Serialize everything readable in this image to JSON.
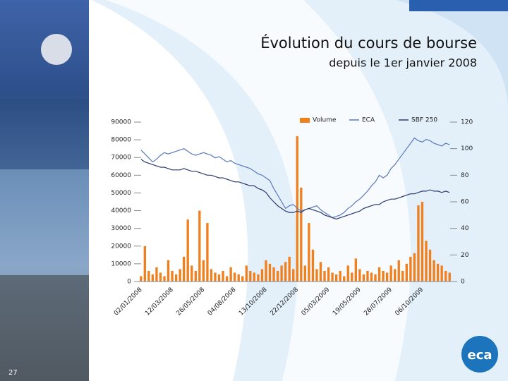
{
  "slide": {
    "title": "Évolution du cours de bourse",
    "subtitle": "depuis le 1er janvier 2008",
    "page_number": "27",
    "logo": "eca"
  },
  "chart_data": {
    "type": "bar-line",
    "categories": [
      "02/01/2008",
      null,
      null,
      null,
      null,
      null,
      null,
      null,
      "12/03/2008",
      null,
      null,
      null,
      null,
      null,
      null,
      null,
      "26/05/2008",
      null,
      null,
      null,
      null,
      null,
      null,
      null,
      "04/08/2008",
      null,
      null,
      null,
      null,
      null,
      null,
      null,
      "13/10/2008",
      null,
      null,
      null,
      null,
      null,
      null,
      null,
      "22/12/2008",
      null,
      null,
      null,
      null,
      null,
      null,
      null,
      "05/03/2009",
      null,
      null,
      null,
      null,
      null,
      null,
      null,
      "19/05/2009",
      null,
      null,
      null,
      null,
      null,
      null,
      null,
      "28/07/2009",
      null,
      null,
      null,
      null,
      null,
      null,
      null,
      "06/10/2009",
      null,
      null,
      null,
      null,
      null,
      null,
      null
    ],
    "series": [
      {
        "name": "Volume",
        "color": "#f07f1e",
        "kind": "bar",
        "axis": "y",
        "values": [
          3000,
          20000,
          6000,
          4000,
          8000,
          5000,
          3000,
          12000,
          6000,
          4000,
          7000,
          14000,
          35000,
          9000,
          6000,
          40000,
          12000,
          33000,
          7000,
          5000,
          4000,
          6000,
          3000,
          8000,
          5000,
          4000,
          3000,
          9000,
          6000,
          5000,
          4000,
          7000,
          12000,
          10000,
          8000,
          6000,
          9000,
          11000,
          14000,
          7000,
          82000,
          53000,
          9000,
          33000,
          18000,
          7000,
          11000,
          6000,
          8000,
          5000,
          4000,
          6000,
          3000,
          9000,
          5000,
          13000,
          7000,
          4000,
          6000,
          5000,
          4000,
          8000,
          6000,
          5000,
          9000,
          7000,
          12000,
          6000,
          10000,
          14000,
          16000,
          43000,
          45000,
          23000,
          18000,
          12000,
          10000,
          9000,
          6000,
          5000
        ]
      },
      {
        "name": "ECA",
        "color": "#5a78c0",
        "kind": "line",
        "axis": "y2",
        "values": [
          99,
          96,
          93,
          90,
          92,
          95,
          97,
          96,
          97,
          98,
          99,
          100,
          98,
          96,
          95,
          96,
          97,
          96,
          95,
          93,
          94,
          92,
          90,
          91,
          89,
          88,
          87,
          86,
          85,
          83,
          81,
          80,
          78,
          76,
          70,
          65,
          60,
          55,
          57,
          58,
          55,
          53,
          54,
          55,
          56,
          57,
          54,
          52,
          50,
          48,
          49,
          50,
          52,
          55,
          57,
          60,
          62,
          65,
          68,
          72,
          75,
          80,
          78,
          80,
          85,
          88,
          92,
          96,
          100,
          104,
          108,
          106,
          105,
          107,
          106,
          104,
          103,
          102,
          104,
          103
        ]
      },
      {
        "name": "SBF 250",
        "color": "#2a3a70",
        "kind": "line",
        "axis": "y2",
        "values": [
          92,
          90,
          89,
          88,
          87,
          86,
          86,
          85,
          84,
          84,
          84,
          85,
          84,
          83,
          83,
          82,
          81,
          80,
          80,
          79,
          78,
          78,
          77,
          76,
          75,
          75,
          74,
          73,
          72,
          72,
          70,
          69,
          67,
          63,
          60,
          57,
          55,
          53,
          52,
          52,
          53,
          52,
          54,
          55,
          54,
          53,
          52,
          50,
          49,
          48,
          47,
          48,
          49,
          50,
          51,
          52,
          53,
          55,
          56,
          57,
          58,
          58,
          60,
          61,
          62,
          62,
          63,
          64,
          65,
          66,
          66,
          67,
          68,
          68,
          69,
          68,
          68,
          67,
          68,
          67
        ]
      }
    ],
    "ylim": [
      0,
      90000
    ],
    "yticks": [
      0,
      10000,
      20000,
      30000,
      40000,
      50000,
      60000,
      70000,
      80000,
      90000
    ],
    "y2lim": [
      0,
      120
    ],
    "y2ticks": [
      0,
      20,
      40,
      60,
      80,
      100,
      120
    ],
    "grid": false,
    "legend": "top"
  }
}
